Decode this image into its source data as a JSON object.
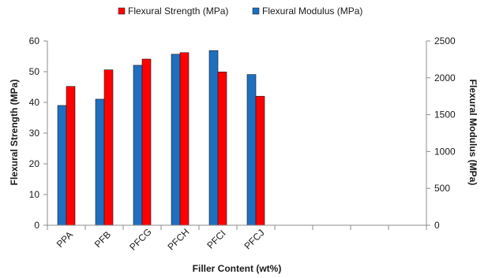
{
  "chart_data": {
    "type": "bar",
    "categories": [
      "PPA",
      "PFB",
      "PFCG",
      "PFCH",
      "PFCI",
      "PFCJ"
    ],
    "slot_count": 10,
    "xlabel": "Filler Content (wt%)",
    "ylabel": "Flexural Strength (MPa)",
    "y2label": "Flexural Modulus (MPa)",
    "ylim": [
      0,
      60
    ],
    "y2lim": [
      0,
      2500
    ],
    "yticks": [
      "0",
      "10",
      "20",
      "30",
      "40",
      "50",
      "60"
    ],
    "y2ticks": [
      "0",
      "500",
      "1000",
      "1500",
      "2000",
      "2500"
    ],
    "grid": false,
    "legend_position": "top",
    "series": [
      {
        "name": "Flexural Modulus (MPa)",
        "axis": "right",
        "color": "#1f6fc0",
        "values": [
          1625,
          1710,
          2170,
          2320,
          2370,
          2045
        ]
      },
      {
        "name": "Flexural Strength  (MPa)",
        "axis": "left",
        "color": "#ff0000",
        "values": [
          45.2,
          50.6,
          54.1,
          56.2,
          49.9,
          42.0
        ]
      }
    ],
    "legend_order": [
      1,
      0
    ]
  }
}
